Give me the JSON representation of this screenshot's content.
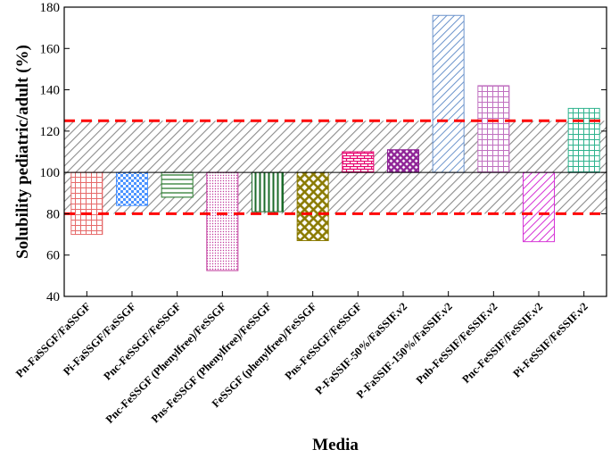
{
  "chart_data": {
    "type": "bar",
    "xlabel": "Media",
    "ylabel": "Solubility pediatric/adult (%)",
    "ylim": [
      40,
      180
    ],
    "yticks": [
      40,
      60,
      80,
      100,
      120,
      140,
      160,
      180
    ],
    "baseline": 100,
    "acceptance_band": [
      80,
      125
    ],
    "band_line_color": "#ff0000",
    "band_fill_color": "#8c8c8c",
    "grid": false,
    "categories": [
      "Pn-FaSSGF/FaSSGF",
      "Pi-FaSSGF/FaSSGF",
      "Pnc-FeSSGF/FeSSGF",
      "Pnc-FeSSGF (Phenylfree)/FeSSGF",
      "Pns-FeSSGF (Phenylfree)/FeSSGF",
      "FeSSGF (phenylfree)/FeSSGF",
      "Pns-FeSSGF/FeSSGF",
      "P-FaSSIF-50%/FaSSIF.v2",
      "P-FaSSIF-150%/FaSSIF.v2",
      "Pnb-FeSSIF/FeSSIF.v2",
      "Pnc-FeSSIF/FeSSIF.v2",
      "Pi-FeSSIF/FeSSIF.v2"
    ],
    "values": [
      70,
      84,
      88,
      52.5,
      81,
      67,
      110,
      111,
      176,
      142,
      66.5,
      131
    ],
    "bar_colors": [
      "#e66a6a",
      "#4d94ff",
      "#2e7d32",
      "#c0399c",
      "#1b6b2a",
      "#8a7a00",
      "#e6006e",
      "#8e2296",
      "#6c94cc",
      "#c070c0",
      "#d633d6",
      "#2fb38e"
    ],
    "bar_patterns": [
      "grid",
      "checker",
      "hlines",
      "dots",
      "vlines",
      "crosshatch",
      "brick",
      "diamond",
      "diag",
      "grid",
      "diag",
      "grid"
    ]
  }
}
